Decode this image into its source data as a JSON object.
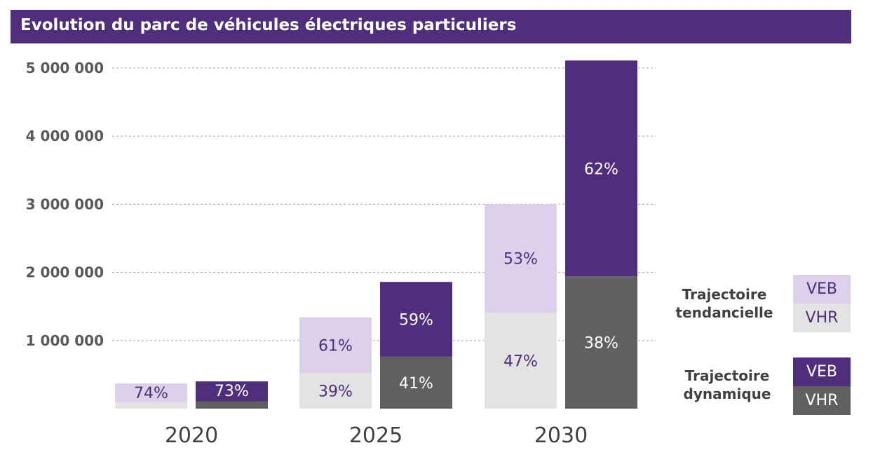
{
  "title": "Evolution du parc de véhicules électriques particuliers",
  "colors": {
    "header_bg": "#4f2f7b",
    "tendanciel_veb": "#dcd0ea",
    "tendanciel_vhr": "#e3e3e3",
    "dynamique_veb": "#4f2f7b",
    "dynamique_vhr": "#606060",
    "label_light": "#4f2f7b",
    "label_dark": "#ffffff"
  },
  "chart_data": {
    "type": "bar",
    "stacked": true,
    "categories": [
      "2020",
      "2025",
      "2030"
    ],
    "ylim": [
      0,
      5000000
    ],
    "yticks": [
      "1 000 000",
      "2 000 000",
      "3 000 000",
      "4 000 000",
      "5 000 000"
    ],
    "ytick_values": [
      1000000,
      2000000,
      3000000,
      4000000,
      5000000
    ],
    "grid": true,
    "legend_position": "right",
    "trajectories": [
      {
        "name": "Trajectoire tendancielle",
        "totals": [
          370000,
          1340000,
          3000000
        ],
        "VEB_labels": [
          "74%",
          "61%",
          "53%"
        ],
        "VHR_labels": [
          "",
          "39%",
          "47%"
        ],
        "VEB_share": [
          0.74,
          0.61,
          0.53
        ],
        "VHR_share": [
          0.26,
          0.39,
          0.47
        ]
      },
      {
        "name": "Trajectoire dynamique",
        "totals": [
          400000,
          1860000,
          5110000
        ],
        "VEB_labels": [
          "73%",
          "59%",
          "62%"
        ],
        "VHR_labels": [
          "",
          "41%",
          "38%"
        ],
        "VEB_share": [
          0.73,
          0.59,
          0.62
        ],
        "VHR_share": [
          0.27,
          0.41,
          0.38
        ]
      }
    ]
  },
  "legend": {
    "tendancielle": {
      "title_line1": "Trajectoire",
      "title_line2": "tendancielle",
      "veb": "VEB",
      "vhr": "VHR"
    },
    "dynamique": {
      "title_line1": "Trajectoire",
      "title_line2": "dynamique",
      "veb": "VEB",
      "vhr": "VHR"
    }
  }
}
